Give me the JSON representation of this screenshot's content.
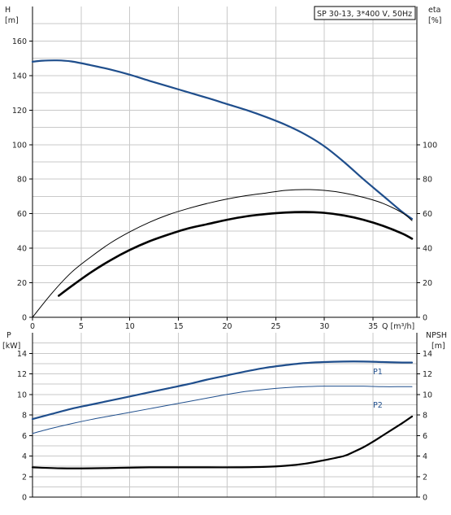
{
  "chart_data": {
    "type": "line",
    "legend_box": "SP 30-13, 3*400 V, 50Hz",
    "x_axis": {
      "label": "Q [m³/h]",
      "range": [
        0,
        39.5
      ],
      "ticks": [
        0,
        5,
        10,
        15,
        20,
        25,
        30,
        35
      ],
      "tick_labels": [
        "0",
        "5",
        "10",
        "15",
        "20",
        "25",
        "30",
        "35"
      ]
    },
    "upper": {
      "left_axis": {
        "title": "H",
        "unit": "[m]",
        "range": [
          0,
          180
        ],
        "ticks": [
          0,
          20,
          40,
          60,
          80,
          100,
          120,
          140,
          160
        ],
        "tick_labels": [
          "0",
          "20",
          "40",
          "60",
          "80",
          "100",
          "120",
          "140",
          "160"
        ]
      },
      "right_axis": {
        "title": "eta",
        "unit": "[%]",
        "ticks": [
          0,
          20,
          40,
          60,
          80,
          100
        ],
        "tick_labels": [
          "0",
          "20",
          "40",
          "60",
          "80",
          "100"
        ]
      },
      "grid": true,
      "series": [
        {
          "key": "H",
          "color": "#1f4e8c",
          "width": 2.2,
          "x": [
            0,
            1,
            2.5,
            4,
            6,
            8,
            10,
            12,
            15,
            18,
            20,
            22,
            24,
            26,
            28,
            30,
            32,
            34,
            36,
            38,
            39
          ],
          "y": [
            148,
            148.6,
            148.8,
            148.2,
            146,
            143.5,
            140.5,
            137,
            132,
            127,
            123.5,
            120,
            116,
            111.5,
            106,
            99,
            90,
            80,
            70.5,
            61,
            57
          ]
        },
        {
          "key": "eta_pump",
          "color": "#000000",
          "width": 1,
          "x": [
            0,
            2,
            4,
            6,
            8,
            10,
            12,
            14,
            16,
            18,
            20,
            22,
            24,
            26,
            28,
            30,
            32,
            34,
            36,
            38,
            39
          ],
          "y": [
            0,
            14,
            26,
            35,
            43,
            49.5,
            55,
            59.5,
            63,
            66,
            68.5,
            70.5,
            72,
            73.5,
            74,
            73.5,
            72,
            69.5,
            66,
            60.5,
            56
          ]
        },
        {
          "key": "eta_total",
          "color": "#000000",
          "width": 2.6,
          "x": [
            2.7,
            4,
            6,
            8,
            10,
            12,
            14,
            16,
            18,
            20,
            22,
            24,
            26,
            28,
            30,
            32,
            34,
            36,
            38,
            39
          ],
          "y": [
            12.5,
            18,
            26,
            33,
            39,
            44,
            48,
            51.5,
            54,
            56.5,
            58.5,
            59.8,
            60.7,
            61,
            60.5,
            59,
            56.5,
            53,
            48.5,
            45.5
          ]
        }
      ]
    },
    "lower": {
      "left_axis": {
        "title": "P",
        "unit": "[kW]",
        "range": [
          0,
          16
        ],
        "ticks": [
          0,
          2,
          4,
          6,
          8,
          10,
          12,
          14
        ],
        "tick_labels": [
          "0",
          "2",
          "4",
          "6",
          "8",
          "10",
          "12",
          "14"
        ]
      },
      "right_axis": {
        "title": "NPSH",
        "unit": "[m]",
        "ticks": [
          0,
          2,
          4,
          6,
          8,
          10,
          12,
          14
        ],
        "tick_labels": [
          "0",
          "2",
          "4",
          "6",
          "8",
          "10",
          "12",
          "14"
        ]
      },
      "grid": true,
      "series": [
        {
          "key": "P1",
          "name": "P1",
          "color": "#1f4e8c",
          "width": 2.2,
          "x": [
            0,
            2,
            4,
            6,
            8,
            10,
            12,
            14,
            16,
            18,
            20,
            22,
            24,
            26,
            28,
            30,
            32,
            34,
            36,
            38,
            39
          ],
          "y": [
            7.6,
            8.1,
            8.6,
            9.0,
            9.4,
            9.8,
            10.2,
            10.6,
            11.0,
            11.45,
            11.85,
            12.25,
            12.6,
            12.85,
            13.05,
            13.15,
            13.2,
            13.2,
            13.15,
            13.1,
            13.1
          ]
        },
        {
          "key": "P2",
          "name": "P2",
          "color": "#1f4e8c",
          "width": 1,
          "x": [
            0,
            2,
            4,
            6,
            8,
            10,
            12,
            14,
            16,
            18,
            20,
            22,
            24,
            26,
            28,
            30,
            32,
            34,
            36,
            38,
            39
          ],
          "y": [
            6.2,
            6.7,
            7.15,
            7.55,
            7.9,
            8.25,
            8.6,
            8.95,
            9.3,
            9.65,
            10.0,
            10.3,
            10.5,
            10.65,
            10.75,
            10.8,
            10.8,
            10.8,
            10.75,
            10.75,
            10.75
          ]
        },
        {
          "key": "NPSH",
          "color": "#000000",
          "width": 2.2,
          "x": [
            0,
            3,
            6,
            9,
            12,
            15,
            18,
            21,
            24,
            26,
            28,
            30,
            32,
            33,
            34,
            35,
            36,
            37,
            38,
            39
          ],
          "y": [
            2.9,
            2.8,
            2.8,
            2.85,
            2.9,
            2.9,
            2.9,
            2.9,
            2.95,
            3.05,
            3.25,
            3.6,
            4.0,
            4.4,
            4.85,
            5.4,
            6.0,
            6.6,
            7.2,
            7.85
          ]
        }
      ]
    }
  }
}
